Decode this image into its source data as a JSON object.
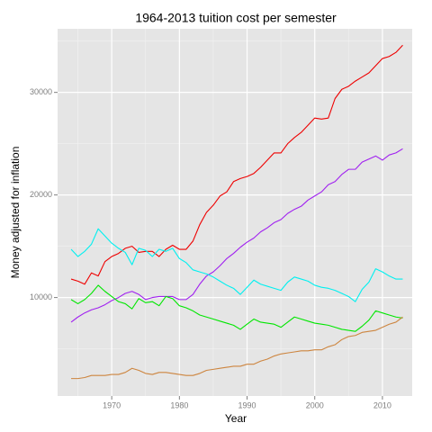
{
  "chart_data": {
    "type": "line",
    "title": "1964-2013 tuition cost per semester",
    "x_label": "Year",
    "y_label": "Money adjusted for inflation",
    "x": [
      1964,
      1965,
      1966,
      1967,
      1968,
      1969,
      1970,
      1971,
      1972,
      1973,
      1974,
      1975,
      1976,
      1977,
      1978,
      1979,
      1980,
      1981,
      1982,
      1983,
      1984,
      1985,
      1986,
      1987,
      1988,
      1989,
      1990,
      1991,
      1992,
      1993,
      1994,
      1995,
      1996,
      1997,
      1998,
      1999,
      2000,
      2001,
      2002,
      2003,
      2004,
      2005,
      2006,
      2007,
      2008,
      2009,
      2010,
      2011,
      2012,
      2013
    ],
    "series": [
      {
        "color": "#ee0000",
        "values": [
          11800,
          11600,
          11300,
          12400,
          12100,
          13500,
          14000,
          14300,
          14800,
          15000,
          14400,
          14500,
          14500,
          14000,
          14700,
          15100,
          14700,
          14700,
          15500,
          17100,
          18300,
          19000,
          19900,
          20300,
          21300,
          21600,
          21800,
          22100,
          22700,
          23400,
          24100,
          24100,
          25000,
          25600,
          26100,
          26800,
          27500,
          27400,
          27500,
          29400,
          30300,
          30600,
          31100,
          31500,
          31900,
          32600,
          33300,
          33500,
          33900,
          34600
        ]
      },
      {
        "color": "#a020f0",
        "values": [
          7600,
          8100,
          8500,
          8800,
          9000,
          9300,
          9700,
          10000,
          10400,
          10600,
          10300,
          9800,
          10000,
          10100,
          10100,
          10100,
          9800,
          9800,
          10300,
          11300,
          12100,
          12500,
          13100,
          13800,
          14300,
          14900,
          15400,
          15800,
          16400,
          16800,
          17300,
          17600,
          18200,
          18600,
          18900,
          19500,
          19900,
          20300,
          21000,
          21300,
          22000,
          22500,
          22500,
          23200,
          23500,
          23800,
          23400,
          23900,
          24100,
          24500
        ]
      },
      {
        "color": "#00f0f0",
        "values": [
          14700,
          14000,
          14500,
          15200,
          16700,
          16000,
          15300,
          14800,
          14400,
          13200,
          14800,
          14600,
          14000,
          14700,
          14500,
          14800,
          13800,
          13400,
          12700,
          12500,
          12300,
          12000,
          11600,
          11200,
          10900,
          10300,
          11000,
          11700,
          11300,
          11100,
          10900,
          10700,
          11500,
          12000,
          11800,
          11600,
          11200,
          11000,
          10900,
          10700,
          10400,
          10100,
          9600,
          10800,
          11500,
          12800,
          12500,
          12100,
          11800,
          11800
        ]
      },
      {
        "color": "#00e600",
        "values": [
          9800,
          9400,
          9800,
          10400,
          11200,
          10600,
          10100,
          9600,
          9400,
          8900,
          9900,
          9500,
          9600,
          9200,
          10100,
          9900,
          9200,
          9000,
          8700,
          8300,
          8100,
          7900,
          7700,
          7500,
          7300,
          6900,
          7400,
          7900,
          7600,
          7500,
          7400,
          7100,
          7600,
          8100,
          7900,
          7700,
          7500,
          7400,
          7300,
          7100,
          6900,
          6800,
          6700,
          7200,
          7800,
          8700,
          8500,
          8300,
          8100,
          8000
        ]
      },
      {
        "color": "#cd853f",
        "values": [
          2100,
          2100,
          2200,
          2400,
          2400,
          2400,
          2500,
          2500,
          2700,
          3100,
          2900,
          2600,
          2500,
          2700,
          2700,
          2600,
          2500,
          2400,
          2400,
          2600,
          2900,
          3000,
          3100,
          3200,
          3300,
          3300,
          3500,
          3500,
          3800,
          4000,
          4300,
          4500,
          4600,
          4700,
          4800,
          4800,
          4900,
          4900,
          5200,
          5400,
          5900,
          6200,
          6300,
          6600,
          6700,
          6800,
          7100,
          7400,
          7600,
          8100
        ]
      }
    ],
    "xlim": [
      1962,
      2014.4
    ],
    "ylim": [
      400,
      36200
    ],
    "xticks": [
      1970,
      1980,
      1990,
      2000,
      2010
    ],
    "yticks": [
      10000,
      20000,
      30000
    ],
    "x_minor_grid": [
      1965,
      1975,
      1985,
      1995,
      2005
    ],
    "y_minor_grid": [
      5000,
      15000,
      25000,
      35000
    ],
    "panel_color": "#e5e5e5",
    "grid": true
  }
}
